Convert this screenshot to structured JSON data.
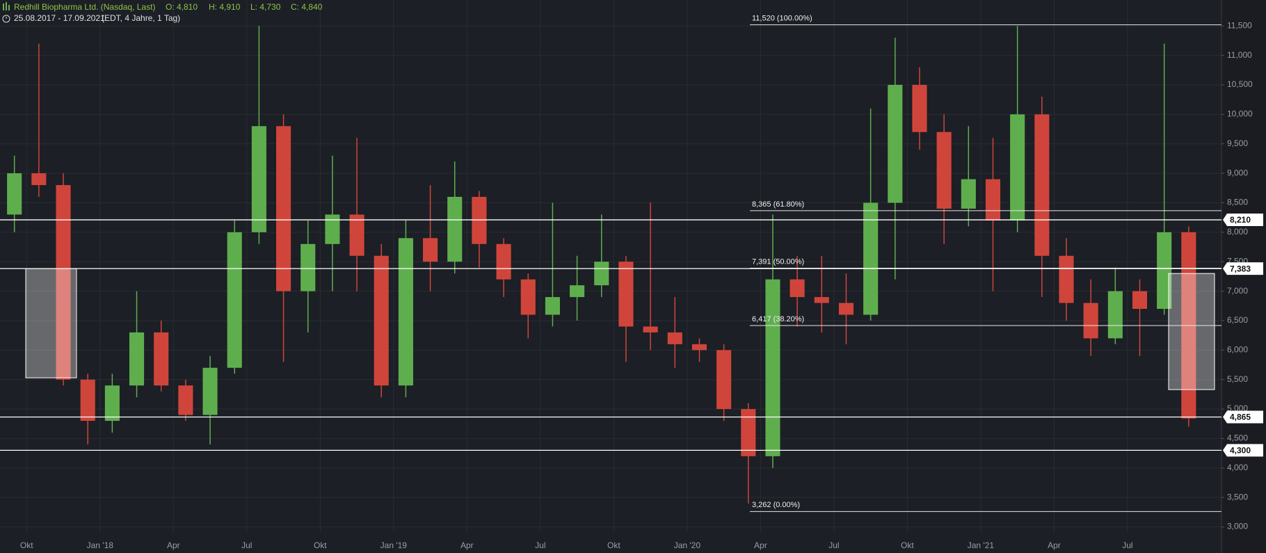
{
  "header": {
    "title": "Redhill Biopharma Ltd. (Nasdaq, Last)",
    "open": "O: 4,810",
    "high": "H: 4,910",
    "low": "L: 4,730",
    "close": "C: 4,840",
    "range": "25.08.2017 - 17.09.2021",
    "info": "(EDT, 4 Jahre, 1 Tag)"
  },
  "chart_data": {
    "type": "candlestick",
    "categories": [
      null,
      "Okt",
      null,
      null,
      "Jan '18",
      null,
      null,
      "Apr",
      null,
      null,
      "Jul",
      null,
      null,
      "Okt",
      null,
      null,
      "Jan '19",
      null,
      null,
      "Apr",
      null,
      null,
      "Jul",
      null,
      null,
      "Okt",
      null,
      null,
      "Jan '20",
      null,
      null,
      "Apr",
      null,
      null,
      "Jul",
      null,
      null,
      "Okt",
      null,
      null,
      "Jan '21",
      null,
      null,
      "Apr",
      null,
      null,
      "Jul",
      null,
      null
    ],
    "open": [
      8.3,
      9.0,
      8.8,
      5.5,
      4.8,
      5.4,
      6.3,
      5.4,
      4.9,
      5.7,
      8.0,
      9.8,
      7.0,
      7.8,
      8.3,
      7.6,
      5.4,
      7.9,
      7.5,
      8.6,
      7.8,
      7.2,
      6.6,
      6.9,
      7.1,
      7.5,
      6.4,
      6.3,
      6.1,
      6.0,
      5.0,
      4.2,
      7.2,
      6.9,
      6.8,
      6.6,
      8.5,
      10.5,
      9.7,
      8.4,
      8.9,
      8.2,
      10.0,
      7.6,
      6.8,
      6.2,
      7.0,
      6.7,
      8.0
    ],
    "high": [
      9.3,
      11.2,
      9.0,
      5.6,
      5.6,
      7.0,
      6.5,
      5.5,
      5.9,
      8.2,
      11.5,
      10.0,
      8.2,
      9.3,
      9.6,
      7.8,
      8.2,
      8.8,
      9.2,
      8.7,
      7.9,
      7.3,
      8.5,
      7.6,
      8.3,
      7.6,
      8.5,
      6.9,
      6.2,
      6.1,
      5.1,
      8.3,
      7.6,
      7.6,
      7.3,
      10.1,
      11.3,
      10.8,
      10.0,
      9.8,
      9.6,
      11.5,
      10.3,
      7.9,
      7.2,
      7.4,
      7.2,
      11.2,
      8.1
    ],
    "low": [
      8.0,
      8.6,
      5.4,
      4.4,
      4.6,
      5.2,
      5.3,
      4.8,
      4.4,
      5.6,
      7.8,
      5.8,
      6.3,
      7.0,
      7.0,
      5.2,
      5.2,
      7.0,
      7.3,
      7.4,
      6.9,
      6.2,
      6.4,
      6.5,
      6.9,
      5.8,
      6.0,
      5.7,
      5.8,
      4.8,
      3.4,
      4.0,
      6.4,
      6.3,
      6.1,
      6.5,
      7.2,
      9.4,
      7.8,
      8.1,
      7.0,
      8.0,
      6.9,
      6.5,
      5.9,
      6.1,
      5.9,
      6.6,
      4.7
    ],
    "close": [
      9.0,
      8.8,
      5.5,
      4.8,
      5.4,
      6.3,
      5.4,
      4.9,
      5.7,
      8.0,
      9.8,
      7.0,
      7.8,
      8.3,
      7.6,
      5.4,
      7.9,
      7.5,
      8.6,
      7.8,
      7.2,
      6.6,
      6.9,
      7.1,
      7.5,
      6.4,
      6.3,
      6.1,
      6.0,
      5.0,
      4.2,
      7.2,
      6.9,
      6.8,
      6.6,
      8.5,
      10.5,
      9.7,
      8.4,
      8.9,
      8.2,
      10.0,
      7.6,
      6.8,
      6.2,
      7.0,
      6.7,
      8.0,
      4.84
    ],
    "up_color": "#5fae4e",
    "down_color": "#d0453b",
    "ylim": [
      2.9,
      11.94
    ],
    "yticks": [
      {
        "value": 3.0,
        "label": "3,000"
      },
      {
        "value": 3.5,
        "label": "3,500"
      },
      {
        "value": 4.0,
        "label": "4,000"
      },
      {
        "value": 4.5,
        "label": "4,500"
      },
      {
        "value": 5.0,
        "label": "5,000"
      },
      {
        "value": 5.5,
        "label": "5,500"
      },
      {
        "value": 6.0,
        "label": "6,000"
      },
      {
        "value": 6.5,
        "label": "6,500"
      },
      {
        "value": 7.0,
        "label": "7,000"
      },
      {
        "value": 7.5,
        "label": "7,500"
      },
      {
        "value": 8.0,
        "label": "8,000"
      },
      {
        "value": 8.5,
        "label": "8,500"
      },
      {
        "value": 9.0,
        "label": "9,000"
      },
      {
        "value": 9.5,
        "label": "9,500"
      },
      {
        "value": 10.0,
        "label": "10,000"
      },
      {
        "value": 10.5,
        "label": "10,500"
      },
      {
        "value": 11.0,
        "label": "11,000"
      },
      {
        "value": 11.5,
        "label": "11,500"
      }
    ],
    "grid": true,
    "fib_levels": [
      {
        "value": 11.52,
        "label": "11,520 (100.00%)"
      },
      {
        "value": 8.365,
        "label": "8,365 (61.80%)"
      },
      {
        "value": 7.391,
        "label": "7,391 (50.00%)"
      },
      {
        "value": 6.417,
        "label": "6,417 (38.20%)"
      },
      {
        "value": 3.262,
        "label": "3,262 (0.00%)"
      }
    ],
    "price_lines": [
      {
        "value": 8.21,
        "label": "8,210"
      },
      {
        "value": 7.383,
        "label": "7,383"
      },
      {
        "value": 4.865,
        "label": "4,865"
      },
      {
        "value": 4.3,
        "label": "4,300"
      }
    ],
    "boxes": [
      {
        "top": 7.383,
        "bottom": 5.53
      },
      {
        "top": 7.3,
        "bottom": 5.33
      }
    ]
  }
}
